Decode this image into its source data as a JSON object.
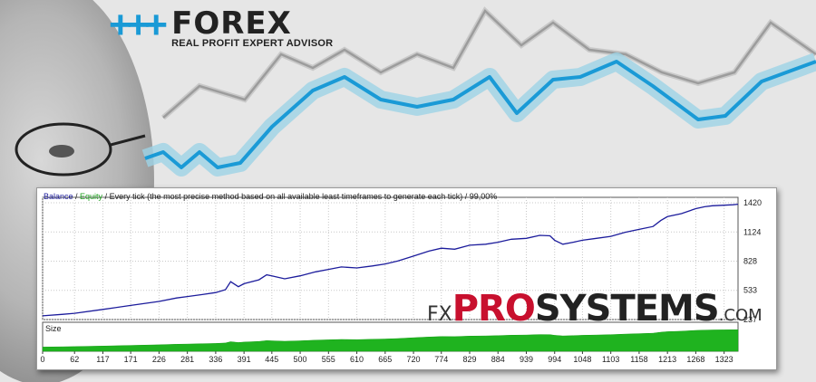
{
  "logo": {
    "title": "FOREX",
    "subtitle": "REAL PROFIT EXPERT ADVISOR",
    "plus_signs": "+++"
  },
  "report": {
    "caption_balance": "Balance",
    "caption_sep1": " / ",
    "caption_equity": "Equity",
    "caption_rest": " / Every tick (the most precise method based on all available least timeframes to generate each tick) / 99,00%",
    "size_label": "Size"
  },
  "brand": {
    "fx": "FX",
    "pro": "PRO",
    "systems": "SYSTEMS",
    "com": ".COM"
  },
  "colors": {
    "brand_blue": "#1a9ad6",
    "brand_red": "#c8102e",
    "balance_line": "#1c1c9c",
    "size_fill": "#1fb31f"
  },
  "chart_data": {
    "type": "line",
    "x_ticks": [
      0,
      62,
      117,
      171,
      226,
      281,
      336,
      391,
      445,
      500,
      555,
      610,
      665,
      720,
      774,
      829,
      884,
      939,
      994,
      1048,
      1103,
      1158,
      1213,
      1268,
      1323
    ],
    "y_ticks": [
      237,
      533,
      828,
      1124,
      1420
    ],
    "ylim": [
      237,
      1420
    ],
    "xlim": [
      0,
      1350
    ],
    "series": [
      {
        "name": "Balance",
        "points": [
          [
            0,
            275
          ],
          [
            40,
            290
          ],
          [
            62,
            300
          ],
          [
            117,
            340
          ],
          [
            171,
            380
          ],
          [
            226,
            420
          ],
          [
            260,
            455
          ],
          [
            281,
            470
          ],
          [
            310,
            490
          ],
          [
            336,
            510
          ],
          [
            355,
            540
          ],
          [
            365,
            620
          ],
          [
            380,
            570
          ],
          [
            391,
            600
          ],
          [
            420,
            640
          ],
          [
            435,
            690
          ],
          [
            445,
            680
          ],
          [
            470,
            650
          ],
          [
            500,
            680
          ],
          [
            530,
            720
          ],
          [
            555,
            745
          ],
          [
            580,
            770
          ],
          [
            610,
            760
          ],
          [
            640,
            780
          ],
          [
            665,
            800
          ],
          [
            690,
            830
          ],
          [
            720,
            880
          ],
          [
            750,
            930
          ],
          [
            774,
            960
          ],
          [
            800,
            950
          ],
          [
            829,
            990
          ],
          [
            860,
            1000
          ],
          [
            884,
            1020
          ],
          [
            910,
            1050
          ],
          [
            939,
            1060
          ],
          [
            965,
            1090
          ],
          [
            985,
            1085
          ],
          [
            994,
            1040
          ],
          [
            1010,
            1000
          ],
          [
            1030,
            1020
          ],
          [
            1048,
            1040
          ],
          [
            1075,
            1060
          ],
          [
            1103,
            1080
          ],
          [
            1130,
            1120
          ],
          [
            1158,
            1150
          ],
          [
            1185,
            1180
          ],
          [
            1200,
            1240
          ],
          [
            1213,
            1280
          ],
          [
            1240,
            1310
          ],
          [
            1268,
            1360
          ],
          [
            1285,
            1380
          ],
          [
            1300,
            1390
          ],
          [
            1323,
            1395
          ],
          [
            1340,
            1400
          ],
          [
            1350,
            1405
          ]
        ]
      }
    ]
  }
}
